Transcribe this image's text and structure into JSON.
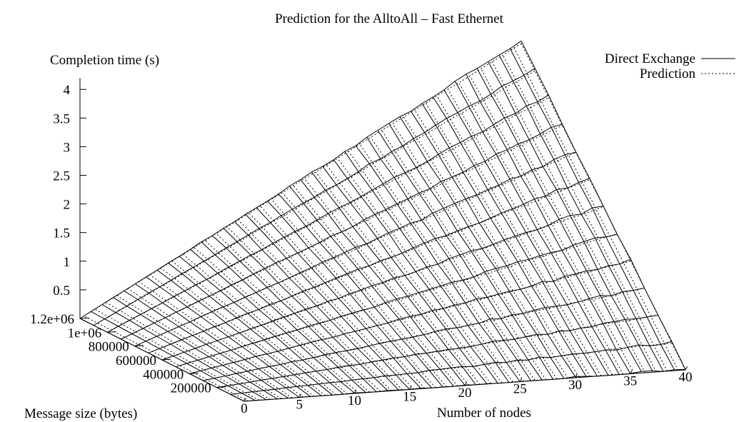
{
  "chart_data": {
    "type": "surface-3d",
    "title": "Prediction for the AlltoAll – Fast Ethernet",
    "z_axis": {
      "label": "Completion time (s)",
      "range": [
        0,
        4.3
      ],
      "ticks": [
        "0.5",
        "1",
        "1.5",
        "2",
        "2.5",
        "3",
        "3.5",
        "4"
      ]
    },
    "x_axis": {
      "label": "Number of nodes",
      "range": [
        0,
        40
      ],
      "ticks": [
        "0",
        "5",
        "10",
        "15",
        "20",
        "25",
        "30",
        "35",
        "40"
      ]
    },
    "y_axis": {
      "label": "Message size (bytes)",
      "range": [
        0,
        1200000
      ],
      "ticks": [
        "200000",
        "400000",
        "600000",
        "800000",
        "1e+06",
        "1.2e+06"
      ]
    },
    "legend": {
      "placement": "top-right",
      "entries": [
        {
          "label": "Direct Exchange",
          "style": "solid"
        },
        {
          "label": "Prediction",
          "style": "dotted"
        }
      ]
    },
    "series": [
      {
        "name": "Direct Exchange",
        "model": "completion time grows approximately as size * nodes",
        "peak_value": 4.3
      },
      {
        "name": "Prediction",
        "model": "completion time grows approximately as size * nodes",
        "peak_value": 4.25
      }
    ]
  }
}
